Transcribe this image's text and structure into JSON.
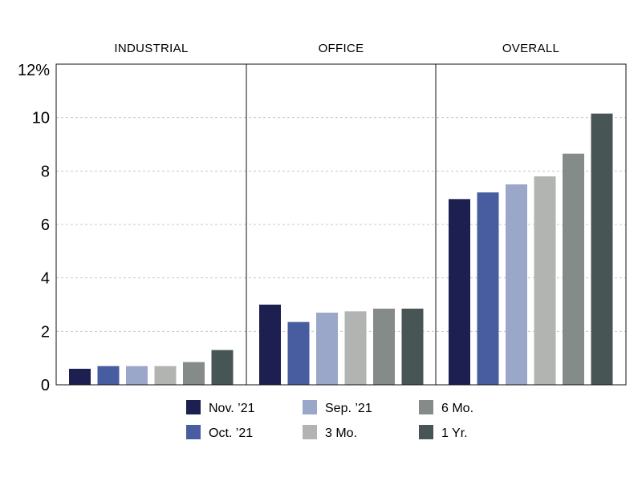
{
  "chart_data": {
    "type": "bar",
    "y_unit_label": "12%",
    "ylim": [
      0,
      12
    ],
    "yticks": [
      "0",
      "2",
      "4",
      "6",
      "8",
      "10"
    ],
    "grid": "horizontal dashed",
    "legend_placement": "bottom",
    "series": [
      {
        "name": "Nov. ’21",
        "color": "#1c1f4f"
      },
      {
        "name": "Oct. ’21",
        "color": "#485d9f"
      },
      {
        "name": "Sep. ’21",
        "color": "#9aa7c9"
      },
      {
        "name": "3 Mo.",
        "color": "#b2b4b2"
      },
      {
        "name": "6 Mo.",
        "color": "#858b89"
      },
      {
        "name": "1 Yr.",
        "color": "#475554"
      }
    ],
    "panels": [
      {
        "title": "INDUSTRIAL",
        "values": [
          0.6,
          0.7,
          0.7,
          0.7,
          0.85,
          1.3
        ]
      },
      {
        "title": "OFFICE",
        "values": [
          3.0,
          2.35,
          2.7,
          2.75,
          2.85,
          2.85
        ]
      },
      {
        "title": "OVERALL",
        "values": [
          6.95,
          7.2,
          7.5,
          7.8,
          8.65,
          10.15
        ]
      }
    ]
  }
}
